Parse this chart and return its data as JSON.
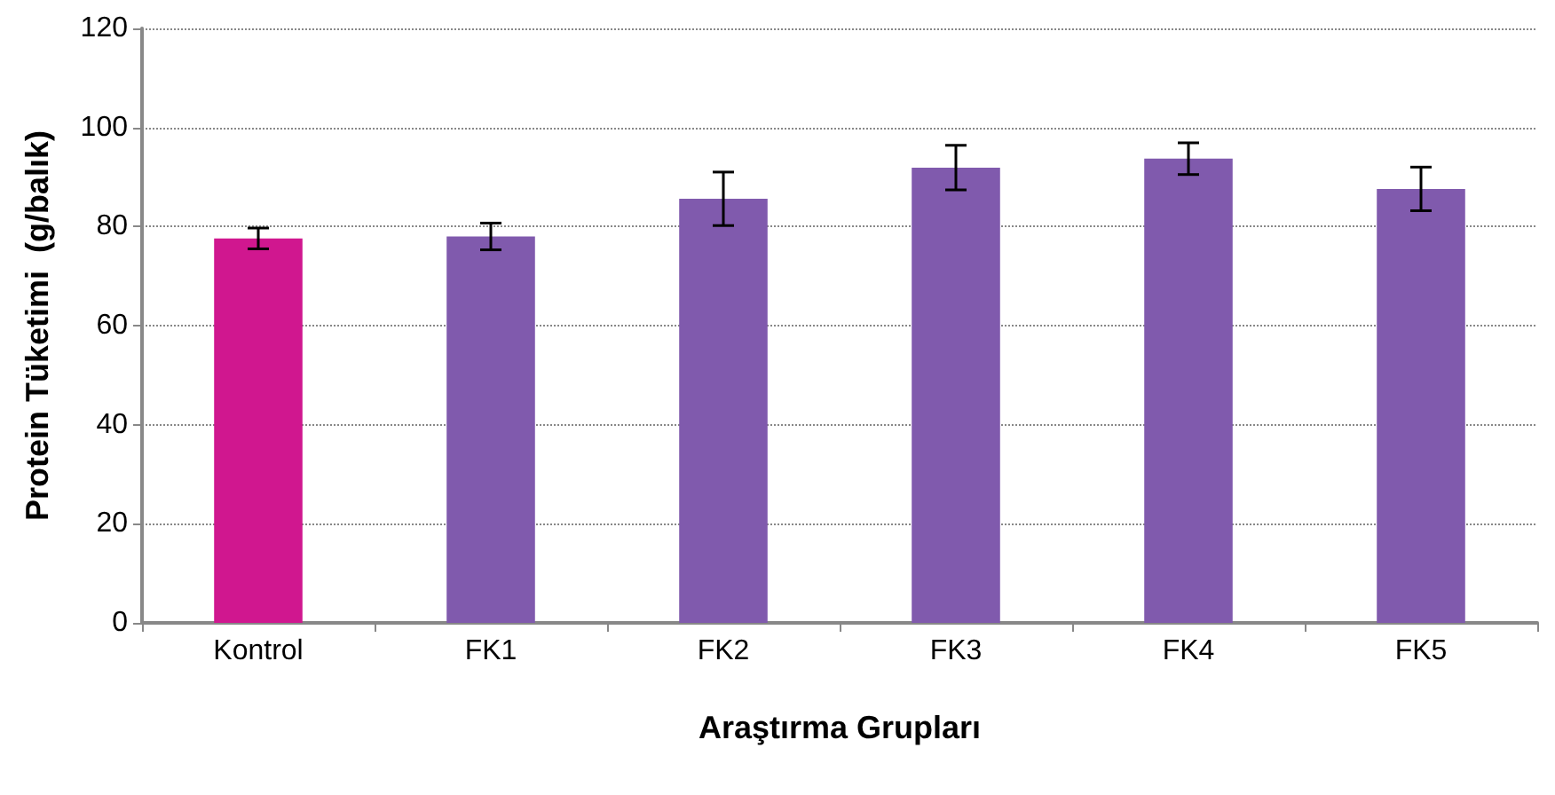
{
  "chart_data": {
    "type": "bar",
    "xlabel": "Araştırma Grupları",
    "ylabel": "Protein Tüketimi  (g/balık)",
    "categories": [
      "Kontrol",
      "FK1",
      "FK2",
      "FK3",
      "FK4",
      "FK5"
    ],
    "values": [
      77.6,
      78.0,
      85.6,
      91.9,
      93.7,
      87.6
    ],
    "errors": [
      2.1,
      2.7,
      5.4,
      4.5,
      3.2,
      4.4
    ],
    "colors": [
      "#d0178f",
      "#805aad",
      "#805aad",
      "#805aad",
      "#805aad",
      "#805aad"
    ],
    "ylim": [
      0,
      120
    ],
    "yticks": [
      0,
      20,
      40,
      60,
      80,
      100,
      120
    ],
    "grid": "y"
  }
}
